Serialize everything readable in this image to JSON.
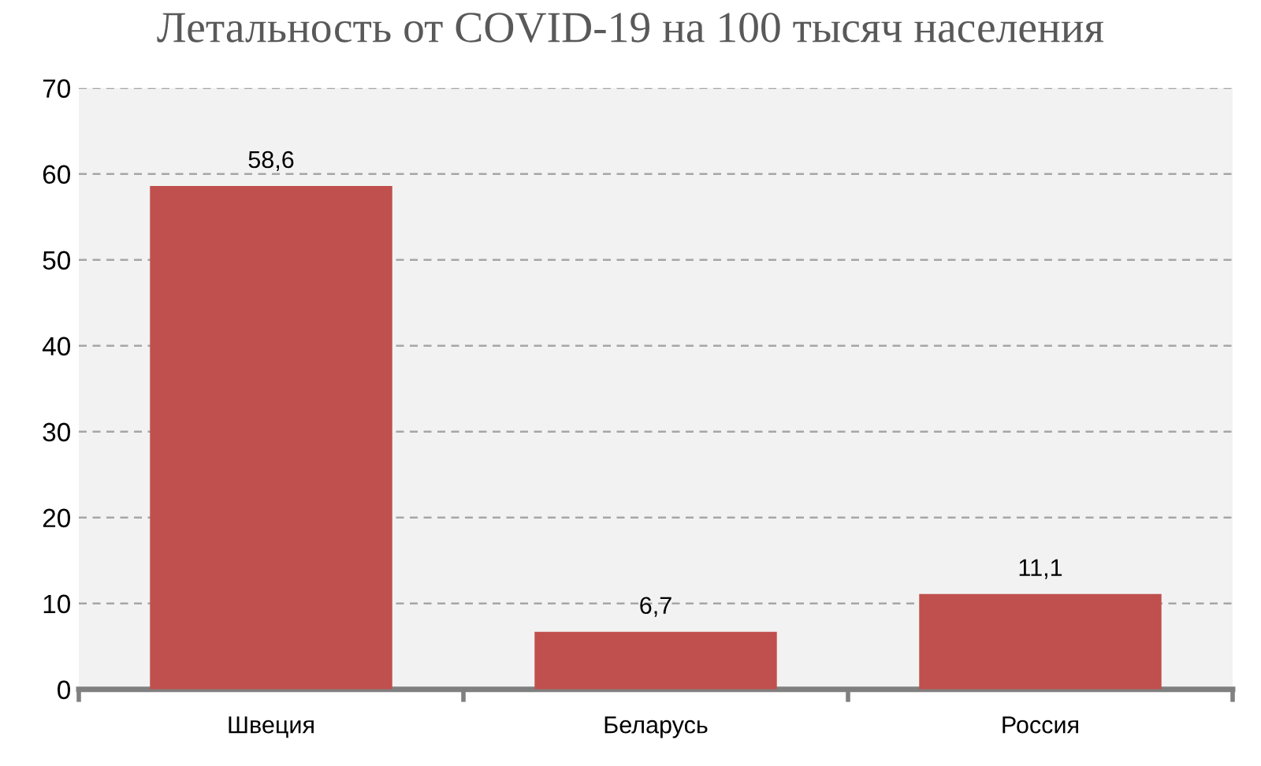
{
  "chart_data": {
    "type": "bar",
    "title": "Летальность от COVID-19 на 100 тысяч населения",
    "categories": [
      "Швеция",
      "Беларусь",
      "Россия"
    ],
    "values": [
      58.6,
      6.7,
      11.1
    ],
    "color": "#c0504d",
    "value_labels": [
      "58,6",
      "6,7",
      "11,1"
    ],
    "ylim": [
      0,
      70
    ],
    "yticks": [
      0,
      10,
      20,
      30,
      40,
      50,
      60,
      70
    ],
    "grid": "y"
  }
}
